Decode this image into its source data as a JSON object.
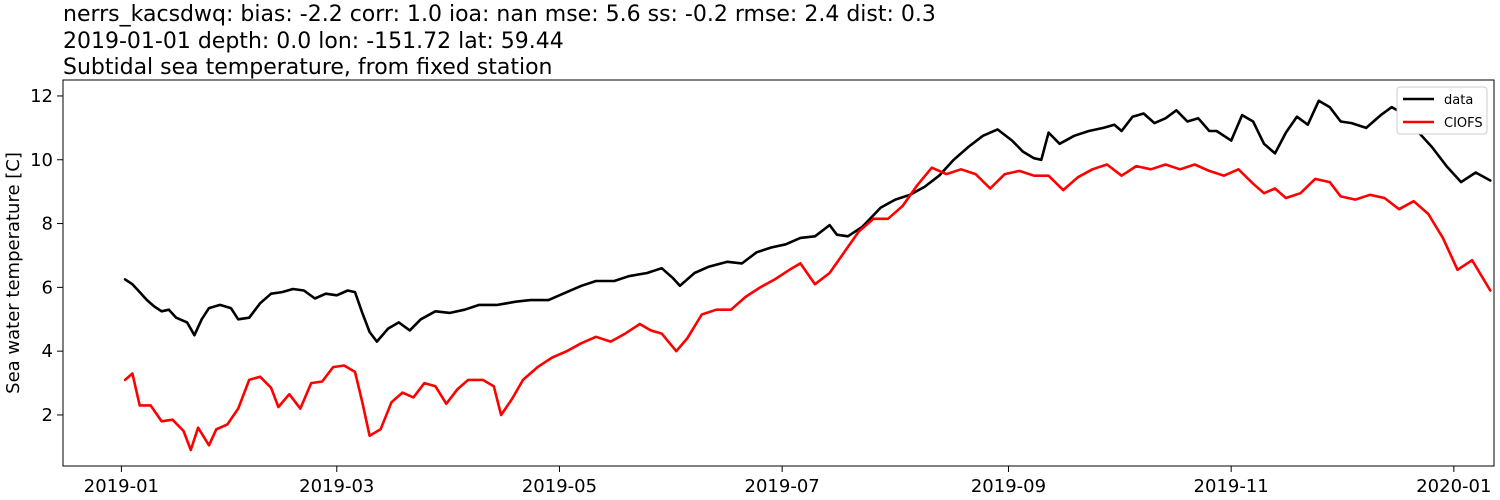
{
  "header": {
    "line1": "nerrs_kacsdwq: bias: -2.2  corr: 1.0  ioa: nan  mse: 5.6  ss: -0.2  rmse: 2.4  dist: 0.3",
    "line2": "2019-01-01 depth: 0.0 lon: -151.72 lat: 59.44",
    "line3": "Subtidal sea temperature, from fixed station"
  },
  "chart_data": {
    "type": "line",
    "title": "Subtidal sea temperature, from fixed station",
    "xlabel": "",
    "ylabel": "Sea water temperature [C]",
    "xlim": [
      "2018-12-16",
      "2020-01-12"
    ],
    "ylim": [
      0.4,
      12.5
    ],
    "x_ticks": [
      "2019-01",
      "2019-03",
      "2019-05",
      "2019-07",
      "2019-09",
      "2019-11",
      "2020-01"
    ],
    "y_ticks": [
      2,
      4,
      6,
      8,
      10,
      12
    ],
    "grid": false,
    "legend_position": "top-right",
    "series": [
      {
        "name": "data",
        "color": "#000000",
        "points": [
          [
            "2019-01-02",
            6.25
          ],
          [
            "2019-01-04",
            6.1
          ],
          [
            "2019-01-06",
            5.85
          ],
          [
            "2019-01-08",
            5.6
          ],
          [
            "2019-01-10",
            5.4
          ],
          [
            "2019-01-12",
            5.25
          ],
          [
            "2019-01-14",
            5.3
          ],
          [
            "2019-01-16",
            5.05
          ],
          [
            "2019-01-19",
            4.9
          ],
          [
            "2019-01-21",
            4.5
          ],
          [
            "2019-01-23",
            5.0
          ],
          [
            "2019-01-25",
            5.35
          ],
          [
            "2019-01-28",
            5.45
          ],
          [
            "2019-01-31",
            5.35
          ],
          [
            "2019-02-02",
            5.0
          ],
          [
            "2019-02-05",
            5.05
          ],
          [
            "2019-02-08",
            5.5
          ],
          [
            "2019-02-11",
            5.8
          ],
          [
            "2019-02-14",
            5.85
          ],
          [
            "2019-02-17",
            5.95
          ],
          [
            "2019-02-20",
            5.9
          ],
          [
            "2019-02-23",
            5.65
          ],
          [
            "2019-02-26",
            5.8
          ],
          [
            "2019-03-01",
            5.75
          ],
          [
            "2019-03-04",
            5.9
          ],
          [
            "2019-03-06",
            5.85
          ],
          [
            "2019-03-08",
            5.2
          ],
          [
            "2019-03-10",
            4.6
          ],
          [
            "2019-03-12",
            4.3
          ],
          [
            "2019-03-15",
            4.7
          ],
          [
            "2019-03-18",
            4.9
          ],
          [
            "2019-03-21",
            4.65
          ],
          [
            "2019-03-24",
            5.0
          ],
          [
            "2019-03-28",
            5.25
          ],
          [
            "2019-04-01",
            5.2
          ],
          [
            "2019-04-05",
            5.3
          ],
          [
            "2019-04-09",
            5.45
          ],
          [
            "2019-04-14",
            5.45
          ],
          [
            "2019-04-19",
            5.55
          ],
          [
            "2019-04-23",
            5.6
          ],
          [
            "2019-04-28",
            5.6
          ],
          [
            "2019-05-02",
            5.8
          ],
          [
            "2019-05-07",
            6.05
          ],
          [
            "2019-05-11",
            6.2
          ],
          [
            "2019-05-16",
            6.2
          ],
          [
            "2019-05-20",
            6.35
          ],
          [
            "2019-05-25",
            6.45
          ],
          [
            "2019-05-29",
            6.6
          ],
          [
            "2019-06-01",
            6.3
          ],
          [
            "2019-06-03",
            6.05
          ],
          [
            "2019-06-07",
            6.45
          ],
          [
            "2019-06-11",
            6.65
          ],
          [
            "2019-06-16",
            6.8
          ],
          [
            "2019-06-20",
            6.75
          ],
          [
            "2019-06-24",
            7.1
          ],
          [
            "2019-06-28",
            7.25
          ],
          [
            "2019-07-02",
            7.35
          ],
          [
            "2019-07-06",
            7.55
          ],
          [
            "2019-07-10",
            7.6
          ],
          [
            "2019-07-14",
            7.95
          ],
          [
            "2019-07-16",
            7.65
          ],
          [
            "2019-07-19",
            7.6
          ],
          [
            "2019-07-23",
            7.9
          ],
          [
            "2019-07-28",
            8.5
          ],
          [
            "2019-08-01",
            8.75
          ],
          [
            "2019-08-05",
            8.9
          ],
          [
            "2019-08-09",
            9.15
          ],
          [
            "2019-08-13",
            9.5
          ],
          [
            "2019-08-17",
            10.0
          ],
          [
            "2019-08-21",
            10.4
          ],
          [
            "2019-08-25",
            10.75
          ],
          [
            "2019-08-29",
            10.95
          ],
          [
            "2019-09-02",
            10.6
          ],
          [
            "2019-09-05",
            10.25
          ],
          [
            "2019-09-08",
            10.05
          ],
          [
            "2019-09-10",
            10.0
          ],
          [
            "2019-09-12",
            10.85
          ],
          [
            "2019-09-15",
            10.5
          ],
          [
            "2019-09-19",
            10.75
          ],
          [
            "2019-09-23",
            10.9
          ],
          [
            "2019-09-27",
            11.0
          ],
          [
            "2019-09-30",
            11.1
          ],
          [
            "2019-10-02",
            10.9
          ],
          [
            "2019-10-05",
            11.35
          ],
          [
            "2019-10-08",
            11.45
          ],
          [
            "2019-10-11",
            11.15
          ],
          [
            "2019-10-14",
            11.3
          ],
          [
            "2019-10-17",
            11.55
          ],
          [
            "2019-10-20",
            11.2
          ],
          [
            "2019-10-23",
            11.3
          ],
          [
            "2019-10-26",
            10.9
          ],
          [
            "2019-10-28",
            10.9
          ],
          [
            "2019-11-01",
            10.6
          ],
          [
            "2019-11-04",
            11.4
          ],
          [
            "2019-11-07",
            11.2
          ],
          [
            "2019-11-10",
            10.5
          ],
          [
            "2019-11-13",
            10.2
          ],
          [
            "2019-11-16",
            10.85
          ],
          [
            "2019-11-19",
            11.35
          ],
          [
            "2019-11-22",
            11.1
          ],
          [
            "2019-11-25",
            11.85
          ],
          [
            "2019-11-28",
            11.65
          ],
          [
            "2019-12-01",
            11.2
          ],
          [
            "2019-12-04",
            11.15
          ],
          [
            "2019-12-08",
            11.0
          ],
          [
            "2019-12-12",
            11.4
          ],
          [
            "2019-12-15",
            11.65
          ],
          [
            "2019-12-18",
            11.45
          ],
          [
            "2019-12-22",
            10.9
          ],
          [
            "2019-12-26",
            10.4
          ],
          [
            "2019-12-30",
            9.8
          ],
          [
            "2020-01-03",
            9.3
          ],
          [
            "2020-01-07",
            9.6
          ],
          [
            "2020-01-11",
            9.35
          ]
        ]
      },
      {
        "name": "CIOFS",
        "color": "#ff0000",
        "points": [
          [
            "2019-01-02",
            3.1
          ],
          [
            "2019-01-04",
            3.3
          ],
          [
            "2019-01-06",
            2.3
          ],
          [
            "2019-01-09",
            2.3
          ],
          [
            "2019-01-12",
            1.8
          ],
          [
            "2019-01-15",
            1.85
          ],
          [
            "2019-01-18",
            1.5
          ],
          [
            "2019-01-20",
            0.9
          ],
          [
            "2019-01-22",
            1.6
          ],
          [
            "2019-01-25",
            1.05
          ],
          [
            "2019-01-27",
            1.55
          ],
          [
            "2019-01-30",
            1.7
          ],
          [
            "2019-02-02",
            2.2
          ],
          [
            "2019-02-05",
            3.1
          ],
          [
            "2019-02-08",
            3.2
          ],
          [
            "2019-02-11",
            2.85
          ],
          [
            "2019-02-13",
            2.25
          ],
          [
            "2019-02-16",
            2.65
          ],
          [
            "2019-02-19",
            2.2
          ],
          [
            "2019-02-22",
            3.0
          ],
          [
            "2019-02-25",
            3.05
          ],
          [
            "2019-02-28",
            3.5
          ],
          [
            "2019-03-03",
            3.55
          ],
          [
            "2019-03-06",
            3.35
          ],
          [
            "2019-03-08",
            2.4
          ],
          [
            "2019-03-10",
            1.35
          ],
          [
            "2019-03-13",
            1.55
          ],
          [
            "2019-03-16",
            2.4
          ],
          [
            "2019-03-19",
            2.7
          ],
          [
            "2019-03-22",
            2.55
          ],
          [
            "2019-03-25",
            3.0
          ],
          [
            "2019-03-28",
            2.9
          ],
          [
            "2019-03-31",
            2.35
          ],
          [
            "2019-04-03",
            2.8
          ],
          [
            "2019-04-06",
            3.1
          ],
          [
            "2019-04-10",
            3.1
          ],
          [
            "2019-04-13",
            2.9
          ],
          [
            "2019-04-15",
            2.0
          ],
          [
            "2019-04-18",
            2.5
          ],
          [
            "2019-04-21",
            3.1
          ],
          [
            "2019-04-25",
            3.5
          ],
          [
            "2019-04-29",
            3.8
          ],
          [
            "2019-05-03",
            4.0
          ],
          [
            "2019-05-07",
            4.25
          ],
          [
            "2019-05-11",
            4.45
          ],
          [
            "2019-05-15",
            4.3
          ],
          [
            "2019-05-19",
            4.55
          ],
          [
            "2019-05-23",
            4.85
          ],
          [
            "2019-05-26",
            4.65
          ],
          [
            "2019-05-29",
            4.55
          ],
          [
            "2019-06-02",
            4.0
          ],
          [
            "2019-06-05",
            4.4
          ],
          [
            "2019-06-09",
            5.15
          ],
          [
            "2019-06-13",
            5.3
          ],
          [
            "2019-06-17",
            5.3
          ],
          [
            "2019-06-21",
            5.7
          ],
          [
            "2019-06-25",
            6.0
          ],
          [
            "2019-06-29",
            6.25
          ],
          [
            "2019-07-03",
            6.55
          ],
          [
            "2019-07-06",
            6.75
          ],
          [
            "2019-07-10",
            6.1
          ],
          [
            "2019-07-14",
            6.45
          ],
          [
            "2019-07-18",
            7.1
          ],
          [
            "2019-07-22",
            7.75
          ],
          [
            "2019-07-26",
            8.15
          ],
          [
            "2019-07-30",
            8.15
          ],
          [
            "2019-08-03",
            8.55
          ],
          [
            "2019-08-07",
            9.2
          ],
          [
            "2019-08-11",
            9.75
          ],
          [
            "2019-08-15",
            9.55
          ],
          [
            "2019-08-19",
            9.7
          ],
          [
            "2019-08-23",
            9.55
          ],
          [
            "2019-08-27",
            9.1
          ],
          [
            "2019-08-31",
            9.55
          ],
          [
            "2019-09-04",
            9.65
          ],
          [
            "2019-09-08",
            9.5
          ],
          [
            "2019-09-12",
            9.5
          ],
          [
            "2019-09-16",
            9.05
          ],
          [
            "2019-09-20",
            9.45
          ],
          [
            "2019-09-24",
            9.7
          ],
          [
            "2019-09-28",
            9.85
          ],
          [
            "2019-10-02",
            9.5
          ],
          [
            "2019-10-06",
            9.8
          ],
          [
            "2019-10-10",
            9.7
          ],
          [
            "2019-10-14",
            9.85
          ],
          [
            "2019-10-18",
            9.7
          ],
          [
            "2019-10-22",
            9.85
          ],
          [
            "2019-10-26",
            9.65
          ],
          [
            "2019-10-30",
            9.5
          ],
          [
            "2019-11-03",
            9.7
          ],
          [
            "2019-11-07",
            9.25
          ],
          [
            "2019-11-10",
            8.95
          ],
          [
            "2019-11-13",
            9.1
          ],
          [
            "2019-11-16",
            8.8
          ],
          [
            "2019-11-20",
            8.95
          ],
          [
            "2019-11-24",
            9.4
          ],
          [
            "2019-11-28",
            9.3
          ],
          [
            "2019-12-01",
            8.85
          ],
          [
            "2019-12-05",
            8.75
          ],
          [
            "2019-12-09",
            8.9
          ],
          [
            "2019-12-13",
            8.8
          ],
          [
            "2019-12-17",
            8.45
          ],
          [
            "2019-12-21",
            8.7
          ],
          [
            "2019-12-25",
            8.3
          ],
          [
            "2019-12-29",
            7.55
          ],
          [
            "2020-01-02",
            6.55
          ],
          [
            "2020-01-06",
            6.85
          ],
          [
            "2020-01-11",
            5.9
          ]
        ]
      }
    ]
  }
}
